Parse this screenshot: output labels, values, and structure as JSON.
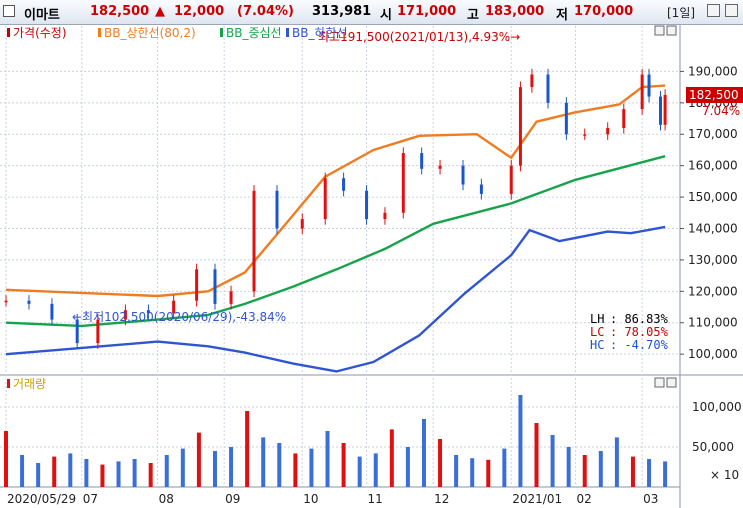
{
  "header": {
    "stock_name": "이마트",
    "price": "182,500",
    "change_arrow": "▲",
    "change": "12,000",
    "change_pct": "(7.04%)",
    "volume": "313,981",
    "open_label": "시",
    "open": "171,000",
    "high_label": "고",
    "high": "183,000",
    "low_label": "저",
    "low": "170,000",
    "period": "[1일]"
  },
  "colors": {
    "price": "#cc0000",
    "bb_upper": "#f07c22",
    "bb_mid": "#16a34a",
    "bb_lower": "#2f55d4",
    "volume": "#3b6fd8",
    "up": "#e01010",
    "down": "#1a55d0"
  },
  "chart_data": [
    {
      "type": "line",
      "legend": [
        "가격(수정)",
        "BB_상한선(80,2)",
        "BB_중심선",
        "BB_하한선"
      ],
      "legend_placement": "top-left",
      "y_ticks": [
        "190,000",
        "180,000",
        "170,000",
        "160,000",
        "150,000",
        "140,000",
        "130,000",
        "120,000",
        "110,000",
        "100,000"
      ],
      "ylim": [
        94000,
        200000
      ],
      "x_labels": [
        "2020/05/29",
        "07",
        "08",
        "09",
        "10",
        "11",
        "12",
        "2021/01",
        "02",
        "03"
      ],
      "x_dates": [
        "2020-05-29",
        "2020-07-01",
        "2020-08-03",
        "2020-09-01",
        "2020-10-05",
        "2020-11-02",
        "2020-12-01",
        "2021-01-04",
        "2021-02-01",
        "2021-03-02"
      ],
      "x_range": [
        "2020-05-29",
        "2021-03-15"
      ],
      "current_price_label": "182,500",
      "current_change_label": "7.04%",
      "annotation_high": "최고191,500(2021/01/13),4.93%→",
      "annotation_low": "←최저102,500(2020/06/29),-43.84%",
      "stats": [
        {
          "label": "LH",
          "value": ": 86.83%",
          "color": "#000000"
        },
        {
          "label": "LC",
          "value": ": 78.05%",
          "color": "#cc0000"
        },
        {
          "label": "HC",
          "value": ": -4.70%",
          "color": "#1a55d0"
        }
      ],
      "series": [
        {
          "name": "가격(수정)",
          "kind": "candles",
          "x": [
            "2020-05-29",
            "2020-06-08",
            "2020-06-18",
            "2020-06-29",
            "2020-07-08",
            "2020-07-20",
            "2020-07-30",
            "2020-08-10",
            "2020-08-20",
            "2020-08-28",
            "2020-09-04",
            "2020-09-14",
            "2020-09-24",
            "2020-10-05",
            "2020-10-15",
            "2020-10-23",
            "2020-11-02",
            "2020-11-10",
            "2020-11-18",
            "2020-11-26",
            "2020-12-04",
            "2020-12-14",
            "2020-12-22",
            "2021-01-04",
            "2021-01-08",
            "2021-01-13",
            "2021-01-20",
            "2021-01-28",
            "2021-02-05",
            "2021-02-15",
            "2021-02-22",
            "2021-03-02",
            "2021-03-05",
            "2021-03-10",
            "2021-03-12"
          ],
          "y": [
            117000,
            116000,
            111000,
            103500,
            111000,
            114000,
            113000,
            117000,
            127000,
            116000,
            120000,
            152000,
            140000,
            143000,
            156000,
            152000,
            143000,
            145000,
            164000,
            159000,
            160000,
            154000,
            151000,
            160000,
            185000,
            189000,
            180000,
            170000,
            170000,
            172000,
            178000,
            189000,
            182000,
            173000,
            182500
          ]
        },
        {
          "name": "BB_상한선(80,2)",
          "x": [
            "2020-05-29",
            "2020-07-01",
            "2020-08-03",
            "2020-08-25",
            "2020-09-10",
            "2020-09-25",
            "2020-10-15",
            "2020-11-05",
            "2020-11-25",
            "2020-12-20",
            "2021-01-04",
            "2021-01-15",
            "2021-02-01",
            "2021-02-20",
            "2021-03-02",
            "2021-03-12"
          ],
          "y": [
            120500,
            119500,
            118500,
            120000,
            126000,
            139000,
            156500,
            165000,
            169500,
            170000,
            162500,
            174000,
            177000,
            179500,
            185000,
            185500
          ]
        },
        {
          "name": "BB_중심선",
          "x": [
            "2020-05-29",
            "2020-07-01",
            "2020-08-03",
            "2020-08-25",
            "2020-09-10",
            "2020-10-01",
            "2020-10-20",
            "2020-11-10",
            "2020-12-01",
            "2021-01-04",
            "2021-02-01",
            "2021-03-12"
          ],
          "y": [
            110000,
            109000,
            111000,
            112500,
            116000,
            121500,
            127000,
            133500,
            141500,
            148000,
            155500,
            163000
          ]
        },
        {
          "name": "BB_하한선",
          "x": [
            "2020-05-29",
            "2020-07-01",
            "2020-08-03",
            "2020-08-25",
            "2020-09-10",
            "2020-10-01",
            "2020-10-20",
            "2020-11-05",
            "2020-11-25",
            "2020-12-15",
            "2021-01-04",
            "2021-01-12",
            "2021-01-25",
            "2021-02-15",
            "2021-02-25",
            "2021-03-12"
          ],
          "y": [
            100000,
            102000,
            104000,
            102500,
            100500,
            97000,
            94500,
            97500,
            106000,
            119500,
            131500,
            139500,
            136000,
            139000,
            138500,
            140500
          ]
        }
      ]
    },
    {
      "type": "bar",
      "legend": [
        "거래량"
      ],
      "y_ticks": [
        "100,000",
        "50,000"
      ],
      "unit_label": "× 10",
      "ylim": [
        0,
        140000
      ],
      "x": [
        "2020-05-29",
        "2020-06-05",
        "2020-06-12",
        "2020-06-19",
        "2020-06-26",
        "2020-07-03",
        "2020-07-10",
        "2020-07-17",
        "2020-07-24",
        "2020-07-31",
        "2020-08-07",
        "2020-08-14",
        "2020-08-21",
        "2020-08-28",
        "2020-09-04",
        "2020-09-11",
        "2020-09-18",
        "2020-09-25",
        "2020-10-02",
        "2020-10-09",
        "2020-10-16",
        "2020-10-23",
        "2020-10-30",
        "2020-11-06",
        "2020-11-13",
        "2020-11-20",
        "2020-11-27",
        "2020-12-04",
        "2020-12-11",
        "2020-12-18",
        "2020-12-25",
        "2021-01-01",
        "2021-01-08",
        "2021-01-15",
        "2021-01-22",
        "2021-01-29",
        "2021-02-05",
        "2021-02-12",
        "2021-02-19",
        "2021-02-26",
        "2021-03-05",
        "2021-03-12"
      ],
      "values": [
        70000,
        40000,
        30000,
        38000,
        42000,
        35000,
        28000,
        32000,
        35000,
        30000,
        40000,
        48000,
        68000,
        45000,
        50000,
        95000,
        62000,
        55000,
        42000,
        48000,
        70000,
        55000,
        38000,
        42000,
        72000,
        50000,
        85000,
        60000,
        40000,
        36000,
        34000,
        48000,
        115000,
        80000,
        65000,
        50000,
        40000,
        45000,
        62000,
        38000,
        35000,
        32000
      ]
    }
  ]
}
